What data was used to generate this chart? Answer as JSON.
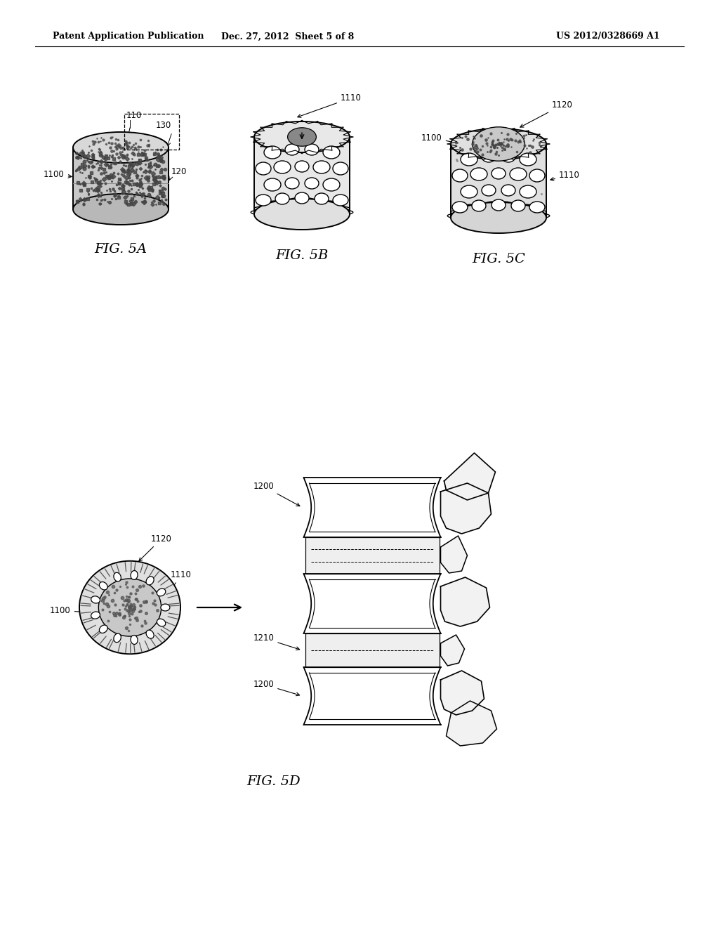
{
  "background_color": "#ffffff",
  "header_left": "Patent Application Publication",
  "header_center": "Dec. 27, 2012  Sheet 5 of 8",
  "header_right": "US 2012/0328669 A1",
  "header_fontsize": 9,
  "fig5a_label": "FIG. 5A",
  "fig5b_label": "FIG. 5B",
  "fig5c_label": "FIG. 5C",
  "fig5d_label": "FIG. 5D",
  "fig_label_fontsize": 14,
  "annotation_fontsize": 8.5,
  "line_color": "#000000"
}
